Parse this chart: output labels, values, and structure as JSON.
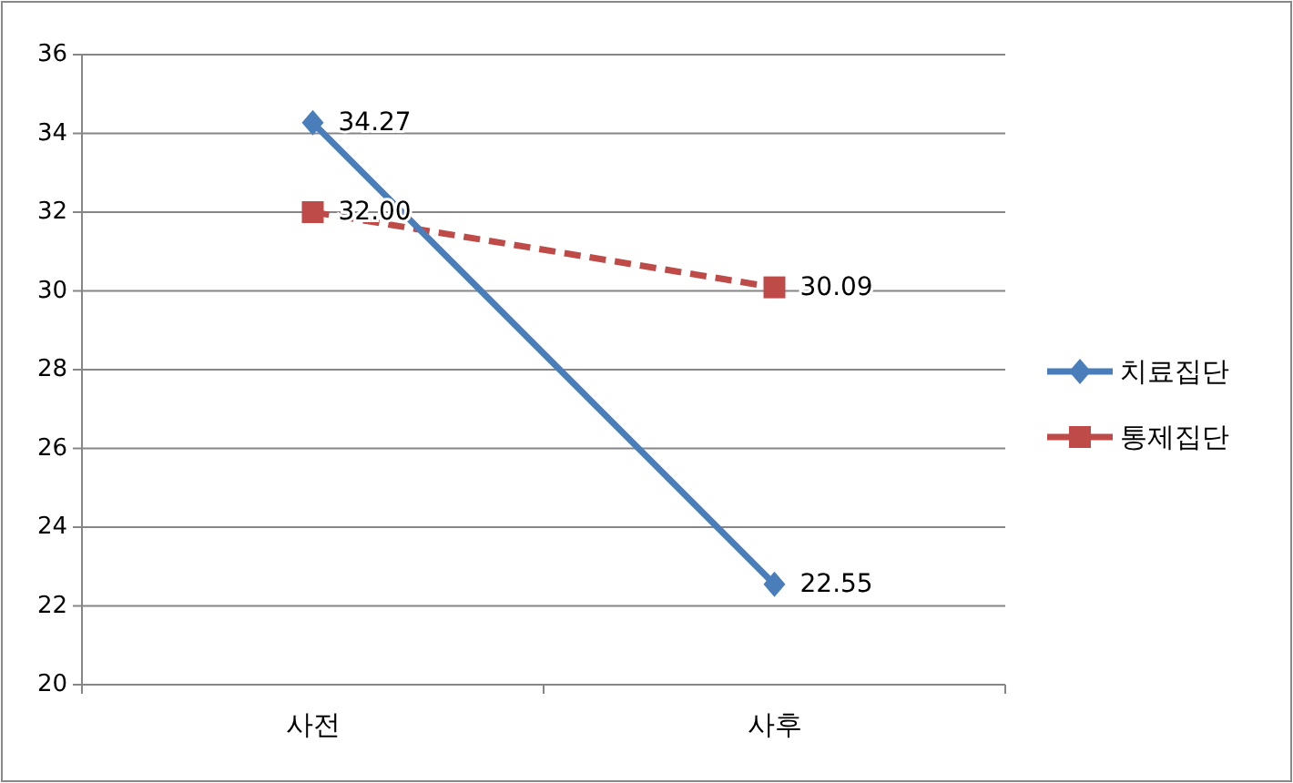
{
  "chart_data": {
    "type": "line",
    "categories": [
      "사전",
      "사후"
    ],
    "series": [
      {
        "name": "치료집단",
        "color": "#4a7ebb",
        "values": [
          34.27,
          22.55
        ],
        "marker": "diamond",
        "line_style": "solid"
      },
      {
        "name": "통제집단",
        "color": "#be4b48",
        "values": [
          32.0,
          30.09
        ],
        "marker": "square",
        "line_style": "dashed"
      }
    ],
    "value_labels": [
      [
        "34.27",
        "22.55"
      ],
      [
        "32.00",
        "30.09"
      ]
    ],
    "ylim": [
      20,
      36
    ],
    "yticks": [
      20,
      22,
      24,
      26,
      28,
      30,
      32,
      34,
      36
    ],
    "grid": "y",
    "legend": "right"
  }
}
